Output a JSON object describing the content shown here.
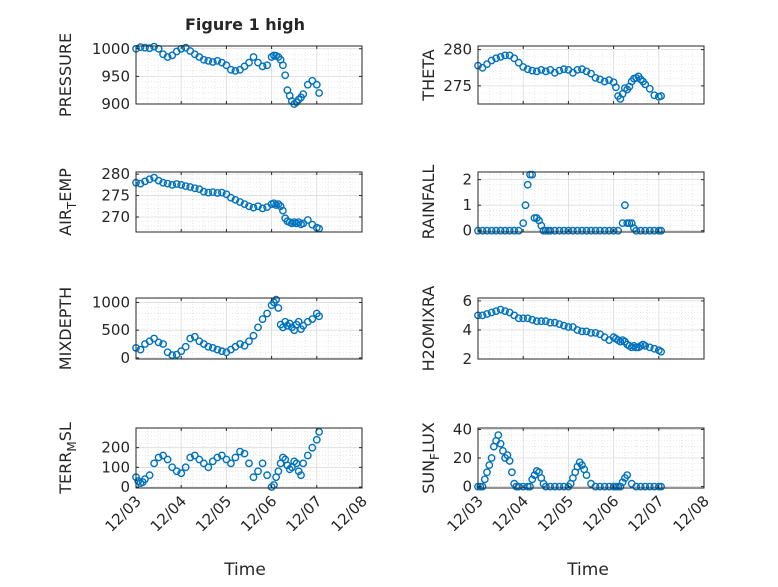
{
  "figure": {
    "title": "Figure 1 high",
    "marker_color": "#0072BD",
    "xlabel": "Time",
    "xticks": [
      "12/03",
      "12/04",
      "12/05",
      "12/06",
      "12/07",
      "12/08"
    ]
  },
  "chart_data": [
    {
      "type": "scatter",
      "ylabel": "PRESSURE",
      "xlim": [
        3,
        8
      ],
      "ylim": [
        900,
        1005
      ],
      "yticks": [
        "900",
        "950",
        "1000"
      ],
      "ytick_values": [
        900,
        950,
        1000
      ],
      "x": [
        3.0,
        3.1,
        3.2,
        3.3,
        3.4,
        3.5,
        3.6,
        3.7,
        3.8,
        3.9,
        4.0,
        4.1,
        4.2,
        4.3,
        4.4,
        4.5,
        4.6,
        4.7,
        4.8,
        4.9,
        5.0,
        5.1,
        5.2,
        5.3,
        5.4,
        5.5,
        5.6,
        5.7,
        5.8,
        5.9,
        6.0,
        6.05,
        6.1,
        6.15,
        6.2,
        6.25,
        6.3,
        6.35,
        6.4,
        6.45,
        6.5,
        6.55,
        6.6,
        6.65,
        6.7,
        6.8,
        6.9,
        7.0,
        7.05
      ],
      "y": [
        1000,
        1003,
        1002,
        1001,
        1004,
        1000,
        990,
        985,
        988,
        995,
        1000,
        1002,
        996,
        990,
        985,
        980,
        978,
        976,
        978,
        975,
        970,
        962,
        960,
        962,
        968,
        975,
        985,
        975,
        968,
        970,
        985,
        988,
        987,
        985,
        980,
        970,
        952,
        925,
        915,
        905,
        900,
        903,
        908,
        912,
        918,
        935,
        942,
        935,
        920
      ]
    },
    {
      "type": "scatter",
      "ylabel": "THETA",
      "xlim": [
        3,
        8
      ],
      "ylim": [
        272.5,
        280.5
      ],
      "yticks": [
        "275",
        "280"
      ],
      "ytick_values": [
        275,
        280
      ],
      "x": [
        3.0,
        3.1,
        3.2,
        3.3,
        3.4,
        3.5,
        3.6,
        3.7,
        3.8,
        3.9,
        4.0,
        4.1,
        4.2,
        4.3,
        4.4,
        4.5,
        4.6,
        4.7,
        4.8,
        4.9,
        5.0,
        5.1,
        5.2,
        5.3,
        5.4,
        5.5,
        5.6,
        5.7,
        5.8,
        5.9,
        6.0,
        6.05,
        6.1,
        6.15,
        6.2,
        6.25,
        6.3,
        6.35,
        6.4,
        6.45,
        6.5,
        6.55,
        6.6,
        6.65,
        6.7,
        6.8,
        6.9,
        7.0,
        7.05
      ],
      "y": [
        277.8,
        277.5,
        278.0,
        278.5,
        278.8,
        279.0,
        279.2,
        279.2,
        278.8,
        278.2,
        277.6,
        277.3,
        277.1,
        277.0,
        277.2,
        277.0,
        277.2,
        276.8,
        277.1,
        277.3,
        277.2,
        276.8,
        277.2,
        277.3,
        277.0,
        276.7,
        276.1,
        275.9,
        275.6,
        275.8,
        275.5,
        274.8,
        273.6,
        273.2,
        273.9,
        274.7,
        274.5,
        274.9,
        275.6,
        276.0,
        276.1,
        276.3,
        275.9,
        275.6,
        275.2,
        274.6,
        273.7,
        273.5,
        273.6
      ]
    },
    {
      "type": "scatter",
      "ylabel": "AIR_TEMP",
      "xlim": [
        3,
        8
      ],
      "ylim": [
        266.5,
        280.5
      ],
      "yticks": [
        "270",
        "275",
        "280"
      ],
      "ytick_values": [
        270,
        275,
        280
      ],
      "x": [
        3.0,
        3.1,
        3.2,
        3.3,
        3.4,
        3.5,
        3.6,
        3.7,
        3.8,
        3.9,
        4.0,
        4.1,
        4.2,
        4.3,
        4.4,
        4.5,
        4.6,
        4.7,
        4.8,
        4.9,
        5.0,
        5.1,
        5.2,
        5.3,
        5.4,
        5.5,
        5.6,
        5.7,
        5.8,
        5.9,
        6.0,
        6.05,
        6.1,
        6.15,
        6.2,
        6.25,
        6.3,
        6.35,
        6.4,
        6.45,
        6.5,
        6.55,
        6.6,
        6.65,
        6.7,
        6.8,
        6.9,
        7.0,
        7.05
      ],
      "y": [
        278.0,
        277.8,
        278.3,
        278.8,
        279.2,
        278.5,
        278.0,
        277.8,
        277.5,
        277.7,
        277.5,
        277.2,
        277.0,
        276.7,
        276.5,
        275.9,
        275.7,
        275.8,
        275.6,
        275.7,
        275.3,
        274.5,
        274.0,
        273.5,
        273.0,
        272.5,
        272.2,
        272.5,
        272.0,
        272.3,
        273.0,
        273.2,
        272.8,
        273.0,
        272.5,
        271.5,
        269.7,
        269.0,
        268.8,
        268.5,
        268.8,
        268.5,
        268.8,
        268.3,
        268.5,
        269.3,
        268.2,
        267.5,
        267.3
      ]
    },
    {
      "type": "scatter",
      "ylabel": "RAINFALL",
      "xlim": [
        3,
        8
      ],
      "ylim": [
        -0.05,
        2.3
      ],
      "yticks": [
        "0",
        "1",
        "2"
      ],
      "ytick_values": [
        0,
        1,
        2
      ],
      "x": [
        3.0,
        3.1,
        3.2,
        3.3,
        3.4,
        3.5,
        3.6,
        3.7,
        3.8,
        3.9,
        4.0,
        4.05,
        4.1,
        4.15,
        4.2,
        4.25,
        4.3,
        4.35,
        4.4,
        4.45,
        4.5,
        4.55,
        4.6,
        4.7,
        4.8,
        4.9,
        5.0,
        5.1,
        5.2,
        5.3,
        5.4,
        5.5,
        5.6,
        5.7,
        5.8,
        5.9,
        6.0,
        6.1,
        6.2,
        6.25,
        6.3,
        6.35,
        6.4,
        6.45,
        6.5,
        6.6,
        6.7,
        6.8,
        6.9,
        7.0,
        7.05
      ],
      "y": [
        0,
        0,
        0,
        0,
        0,
        0,
        0,
        0,
        0,
        0,
        0.3,
        1.0,
        1.8,
        2.2,
        2.2,
        0.5,
        0.5,
        0.4,
        0.2,
        0,
        0,
        0,
        0,
        0,
        0,
        0,
        0,
        0,
        0,
        0,
        0,
        0,
        0,
        0,
        0,
        0,
        0,
        0,
        0.3,
        1.0,
        0.3,
        0.3,
        0.3,
        0.1,
        0,
        0,
        0,
        0,
        0,
        0,
        0
      ]
    },
    {
      "type": "scatter",
      "ylabel": "MIXDEPTH",
      "xlim": [
        3,
        8
      ],
      "ylim": [
        -20,
        1080
      ],
      "yticks": [
        "0",
        "500",
        "1000"
      ],
      "ytick_values": [
        0,
        500,
        1000
      ],
      "x": [
        3.0,
        3.1,
        3.2,
        3.3,
        3.4,
        3.5,
        3.6,
        3.7,
        3.8,
        3.9,
        4.0,
        4.1,
        4.2,
        4.3,
        4.4,
        4.5,
        4.6,
        4.7,
        4.8,
        4.9,
        5.0,
        5.1,
        5.2,
        5.3,
        5.4,
        5.5,
        5.6,
        5.7,
        5.8,
        5.9,
        6.0,
        6.05,
        6.1,
        6.15,
        6.2,
        6.25,
        6.3,
        6.35,
        6.4,
        6.45,
        6.5,
        6.55,
        6.6,
        6.65,
        6.7,
        6.8,
        6.9,
        7.0,
        7.05
      ],
      "y": [
        180,
        150,
        250,
        300,
        350,
        280,
        250,
        100,
        50,
        60,
        120,
        200,
        350,
        380,
        300,
        250,
        200,
        180,
        150,
        120,
        100,
        150,
        200,
        250,
        220,
        300,
        400,
        550,
        700,
        800,
        950,
        1000,
        1050,
        900,
        600,
        550,
        650,
        580,
        620,
        550,
        500,
        600,
        650,
        520,
        580,
        650,
        700,
        800,
        750
      ]
    },
    {
      "type": "scatter",
      "ylabel": "H2OMIXRA",
      "xlim": [
        3,
        8
      ],
      "ylim": [
        2,
        6.2
      ],
      "yticks": [
        "2",
        "4",
        "6"
      ],
      "ytick_values": [
        2,
        4,
        6
      ],
      "x": [
        3.0,
        3.1,
        3.2,
        3.3,
        3.4,
        3.5,
        3.6,
        3.7,
        3.8,
        3.9,
        4.0,
        4.1,
        4.2,
        4.3,
        4.4,
        4.5,
        4.6,
        4.7,
        4.8,
        4.9,
        5.0,
        5.1,
        5.2,
        5.3,
        5.4,
        5.5,
        5.6,
        5.7,
        5.8,
        5.9,
        6.0,
        6.05,
        6.1,
        6.15,
        6.2,
        6.25,
        6.3,
        6.35,
        6.4,
        6.45,
        6.5,
        6.55,
        6.6,
        6.65,
        6.7,
        6.8,
        6.9,
        7.0,
        7.05
      ],
      "y": [
        5.0,
        5.0,
        5.1,
        5.2,
        5.3,
        5.4,
        5.3,
        5.2,
        5.0,
        4.8,
        4.8,
        4.8,
        4.7,
        4.6,
        4.6,
        4.6,
        4.5,
        4.5,
        4.4,
        4.3,
        4.2,
        4.2,
        4.0,
        3.9,
        3.9,
        3.8,
        3.8,
        3.7,
        3.5,
        3.3,
        3.5,
        3.4,
        3.3,
        3.2,
        3.3,
        3.2,
        3.0,
        2.9,
        2.8,
        2.9,
        2.8,
        2.8,
        2.9,
        3.0,
        2.9,
        2.8,
        2.7,
        2.6,
        2.5
      ]
    },
    {
      "type": "scatter",
      "ylabel": "TERR_MSL",
      "xlim": [
        3,
        8
      ],
      "ylim": [
        -5,
        300
      ],
      "yticks": [
        "0",
        "100",
        "200"
      ],
      "ytick_values": [
        0,
        100,
        200
      ],
      "x": [
        3.0,
        3.05,
        3.1,
        3.15,
        3.2,
        3.3,
        3.4,
        3.5,
        3.6,
        3.7,
        3.8,
        3.9,
        4.0,
        4.1,
        4.2,
        4.3,
        4.4,
        4.5,
        4.6,
        4.7,
        4.8,
        4.9,
        5.0,
        5.1,
        5.2,
        5.3,
        5.4,
        5.5,
        5.6,
        5.7,
        5.8,
        5.9,
        6.0,
        6.05,
        6.1,
        6.15,
        6.2,
        6.25,
        6.3,
        6.35,
        6.4,
        6.45,
        6.5,
        6.55,
        6.6,
        6.65,
        6.7,
        6.8,
        6.9,
        7.0,
        7.05
      ],
      "y": [
        50,
        30,
        20,
        25,
        40,
        60,
        120,
        150,
        160,
        140,
        100,
        80,
        70,
        100,
        150,
        160,
        140,
        120,
        100,
        130,
        150,
        160,
        140,
        120,
        150,
        180,
        170,
        120,
        50,
        80,
        120,
        60,
        0,
        10,
        50,
        80,
        120,
        150,
        140,
        110,
        90,
        100,
        130,
        120,
        80,
        60,
        120,
        160,
        200,
        240,
        280
      ]
    },
    {
      "type": "scatter",
      "ylabel": "SUN_FLUX",
      "xlim": [
        3,
        8
      ],
      "ylim": [
        -1,
        41
      ],
      "yticks": [
        "0",
        "20",
        "40"
      ],
      "ytick_values": [
        0,
        20,
        40
      ],
      "x": [
        3.0,
        3.05,
        3.1,
        3.15,
        3.2,
        3.25,
        3.3,
        3.35,
        3.4,
        3.45,
        3.5,
        3.55,
        3.6,
        3.65,
        3.7,
        3.75,
        3.8,
        3.85,
        3.9,
        4.0,
        4.1,
        4.15,
        4.2,
        4.25,
        4.3,
        4.35,
        4.4,
        4.45,
        4.5,
        4.6,
        4.7,
        4.8,
        4.9,
        5.0,
        5.05,
        5.1,
        5.15,
        5.2,
        5.25,
        5.3,
        5.35,
        5.4,
        5.5,
        5.6,
        5.7,
        5.8,
        5.9,
        6.0,
        6.05,
        6.1,
        6.15,
        6.2,
        6.25,
        6.3,
        6.4,
        6.5,
        6.6,
        6.7,
        6.8,
        6.9,
        7.0,
        7.05
      ],
      "y": [
        0,
        0,
        0,
        5,
        10,
        15,
        20,
        28,
        32,
        36,
        30,
        25,
        20,
        22,
        18,
        10,
        2,
        0,
        0,
        0,
        0,
        0,
        5,
        8,
        11,
        10,
        6,
        2,
        0,
        0,
        0,
        0,
        0,
        0,
        2,
        6,
        10,
        14,
        17,
        15,
        12,
        8,
        2,
        0,
        0,
        0,
        0,
        0,
        0,
        0,
        0,
        3,
        6,
        8,
        2,
        0,
        0,
        0,
        0,
        0,
        0,
        0
      ]
    }
  ]
}
